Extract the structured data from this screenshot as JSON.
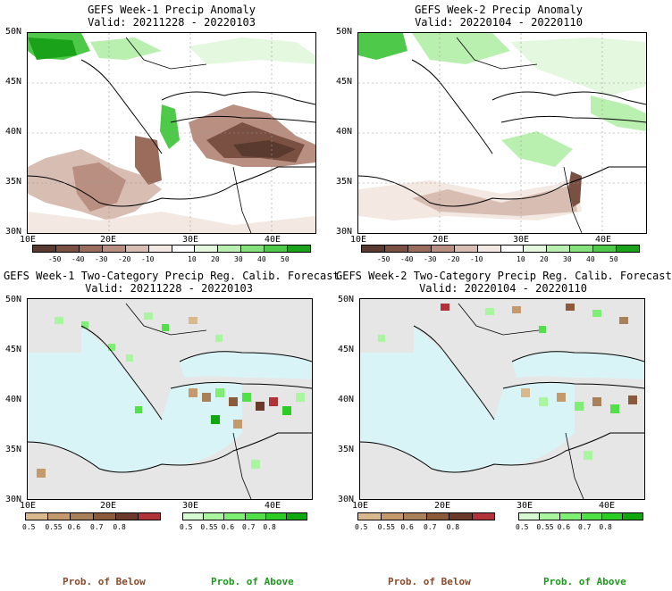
{
  "panels": [
    {
      "title": "GEFS Week-1 Precip Anomaly",
      "valid": "Valid: 20211228 - 20220103"
    },
    {
      "title": "GEFS Week-2 Precip Anomaly",
      "valid": "Valid: 20220104 - 20220110"
    },
    {
      "title": "GEFS Week-1 Two-Category Precip Reg. Calib. Forecast",
      "valid": "Valid: 20211228 - 20220103"
    },
    {
      "title": "GEFS Week-2 Two-Category Precip Reg. Calib. Forecast",
      "valid": "Valid: 20220104 - 20220110"
    }
  ],
  "axes": {
    "lat_labels": [
      "50N",
      "45N",
      "40N",
      "35N",
      "30N"
    ],
    "lon_labels": [
      "10E",
      "20E",
      "30E",
      "40E"
    ]
  },
  "anomaly_colorbar": {
    "ticks": [
      "-50",
      "-40",
      "-30",
      "-20",
      "-10",
      "10",
      "20",
      "30",
      "40",
      "50"
    ],
    "colors": [
      "#5a3a2e",
      "#7a5043",
      "#9a6c5c",
      "#b88f80",
      "#d8bdb2",
      "#f4e8e3",
      "#ffffff",
      "#e3f8df",
      "#b9f0b0",
      "#86e07c",
      "#4fc94a",
      "#1aa31a"
    ]
  },
  "prob_below": {
    "label": "Prob. of Below",
    "ticks": [
      "0.5",
      "0.55",
      "0.6",
      "0.7",
      "0.8"
    ],
    "colors": [
      "#d8b88c",
      "#c49a6c",
      "#a8805a",
      "#8b5a3a",
      "#6b3a2a",
      "#b0333a"
    ]
  },
  "prob_above": {
    "label": "Prob. of Above",
    "ticks": [
      "0.5",
      "0.55",
      "0.6",
      "0.7",
      "0.8"
    ],
    "colors": [
      "#d6fbd0",
      "#a9f5a0",
      "#7fee74",
      "#52e048",
      "#2bcc24",
      "#10a810"
    ]
  },
  "colors": {
    "below_label": "#8b4a2b",
    "above_label": "#1a9a1a",
    "sea": "#d8f4f6",
    "nodata": "#e6e6e6"
  }
}
